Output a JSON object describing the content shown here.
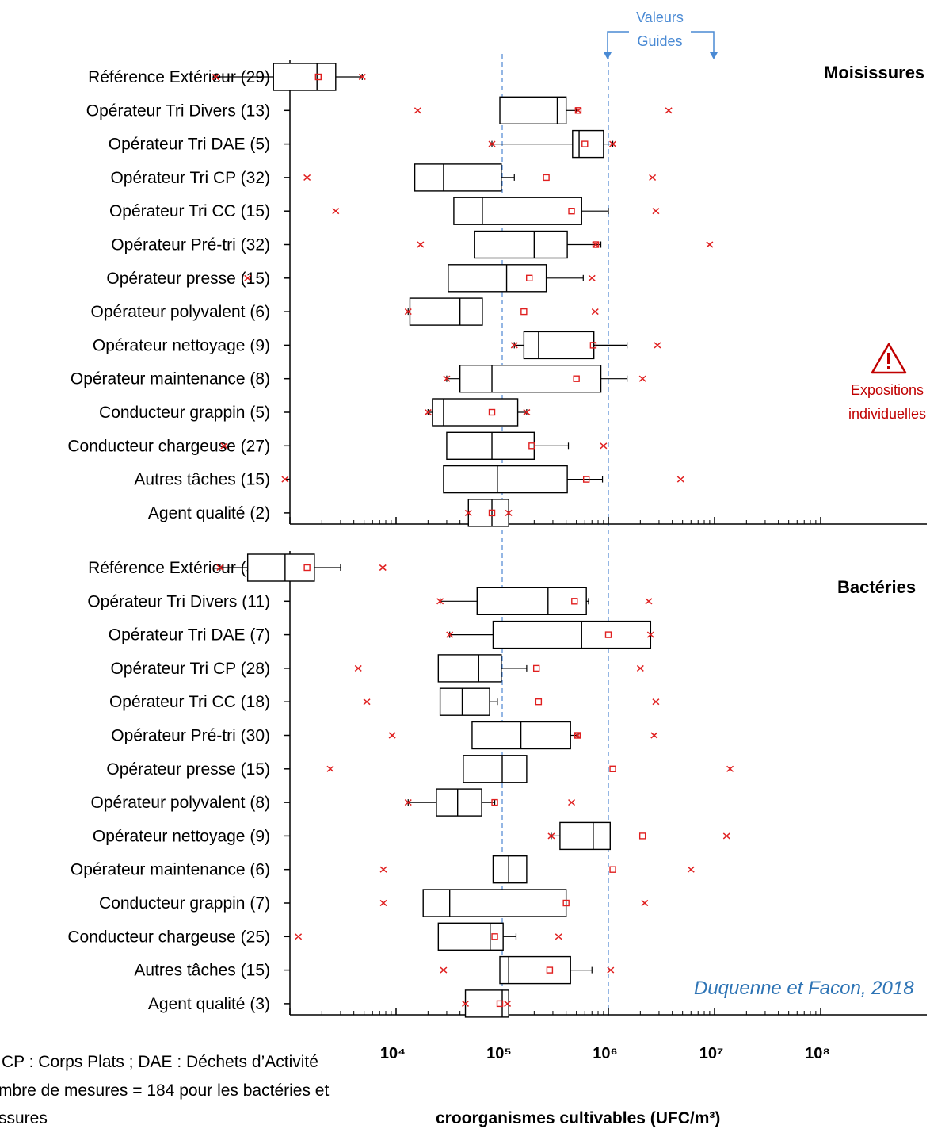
{
  "chart_data": {
    "type": "box",
    "xlabel": "croorganismes cultivables (UFC/m³)",
    "x_scale": "log10",
    "xlim": [
      1000,
      100000000
    ],
    "x_ticks": [
      {
        "value": 10000,
        "label": "10⁴"
      },
      {
        "value": 100000,
        "label": "10⁵"
      },
      {
        "value": 1000000,
        "label": "10⁶"
      },
      {
        "value": 10000000,
        "label": "10⁷"
      },
      {
        "value": 100000000,
        "label": "10⁸"
      }
    ],
    "reference_lines": [
      100000,
      1000000
    ],
    "reference_label": [
      "Valeurs",
      "Guides"
    ],
    "annotation": [
      "Expositions",
      "individuelles"
    ],
    "source": "Duquenne et Facon, 2018",
    "notes": [
      "CP : Corps Plats ; DAE : Déchets d’Activité",
      "mbre de mesures = 184 pour les bactéries et",
      "ssures"
    ],
    "panels": [
      {
        "title": "Moisissures",
        "series": [
          {
            "name": "Référence Extérieur (29)",
            "wlo": 200,
            "q1": 700,
            "med": 1800,
            "q3": 2700,
            "whi": 4800,
            "mean": 1850,
            "outliers": [
              200,
              4800
            ]
          },
          {
            "name": "Opérateur Tri Divers (13)",
            "wlo": 100000,
            "q1": 95000,
            "med": 330000,
            "q3": 400000,
            "whi": 500000,
            "mean": 520000,
            "outliers": [
              16000,
              520000,
              3700000
            ]
          },
          {
            "name": "Opérateur Tri DAE (5)",
            "wlo": 80000,
            "q1": 460000,
            "med": 530000,
            "q3": 900000,
            "whi": 1100000,
            "mean": 600000,
            "outliers": [
              80000,
              1100000
            ]
          },
          {
            "name": "Opérateur Tri CP (32)",
            "wlo": 95000,
            "q1": 15000,
            "med": 28000,
            "q3": 98000,
            "whi": 130000,
            "mean": 260000,
            "outliers": [
              1450,
              2600000
            ]
          },
          {
            "name": "Opérateur Tri CC (15)",
            "wlo": 100000,
            "q1": 35000,
            "med": 65000,
            "q3": 560000,
            "whi": 1000000,
            "mean": 450000,
            "outliers": [
              2700,
              2800000
            ]
          },
          {
            "name": "Opérateur Pré-tri (32)",
            "wlo": 100000,
            "q1": 55000,
            "med": 200000,
            "q3": 410000,
            "whi": 850000,
            "mean": 760000,
            "outliers": [
              17000,
              760000,
              9000000
            ]
          },
          {
            "name": "Opérateur presse (15)",
            "wlo": 100000,
            "q1": 31000,
            "med": 110000,
            "q3": 260000,
            "whi": 580000,
            "mean": 180000,
            "outliers": [
              400,
              700000
            ]
          },
          {
            "name": "Opérateur polyvalent (6)",
            "wlo": 13000,
            "q1": 13500,
            "med": 40000,
            "q3": 65000,
            "whi": 65000,
            "mean": 160000,
            "outliers": [
              13000,
              750000
            ]
          },
          {
            "name": "Opérateur nettoyage (9)",
            "wlo": 130000,
            "q1": 160000,
            "med": 220000,
            "q3": 730000,
            "whi": 1500000,
            "mean": 720000,
            "outliers": [
              130000,
              2900000
            ]
          },
          {
            "name": "Opérateur maintenance (8)",
            "wlo": 30000,
            "q1": 40000,
            "med": 80000,
            "q3": 850000,
            "whi": 1500000,
            "mean": 500000,
            "outliers": [
              30000,
              2100000
            ]
          },
          {
            "name": "Conducteur grappin (5)",
            "wlo": 20000,
            "q1": 22000,
            "med": 28000,
            "q3": 140000,
            "whi": 170000,
            "mean": 80000,
            "outliers": [
              20000,
              170000
            ]
          },
          {
            "name": "Conducteur chargeuse (27)",
            "wlo": 100000,
            "q1": 30000,
            "med": 80000,
            "q3": 200000,
            "whi": 420000,
            "mean": 190000,
            "outliers": [
              240,
              900000
            ]
          },
          {
            "name": "Autres tâches (15)",
            "wlo": 100000,
            "q1": 28000,
            "med": 90000,
            "q3": 410000,
            "whi": 880000,
            "mean": 620000,
            "outliers": [
              900,
              4800000
            ]
          },
          {
            "name": "Agent qualité (2)",
            "wlo": 48000,
            "q1": 48000,
            "med": 80000,
            "q3": 115000,
            "whi": 115000,
            "mean": 80000,
            "outliers": [
              48000,
              115000
            ]
          }
        ]
      },
      {
        "title": "Bactéries",
        "series": [
          {
            "name": "Référence Extérieur (36)",
            "wlo": 220,
            "q1": 400,
            "med": 900,
            "q3": 1700,
            "whi": 3000,
            "mean": 1450,
            "outliers": [
              220,
              7500
            ]
          },
          {
            "name": "Opérateur Tri Divers (11)",
            "wlo": 26000,
            "q1": 58000,
            "med": 270000,
            "q3": 620000,
            "whi": 650000,
            "mean": 480000,
            "outliers": [
              26000,
              2400000
            ]
          },
          {
            "name": "Opérateur Tri DAE (7)",
            "wlo": 32000,
            "q1": 82000,
            "med": 560000,
            "q3": 2500000,
            "whi": 2500000,
            "mean": 1000000,
            "outliers": [
              32000,
              2500000
            ]
          },
          {
            "name": "Opérateur Tri CP (28)",
            "wlo": 100000,
            "q1": 25000,
            "med": 60000,
            "q3": 98000,
            "whi": 170000,
            "mean": 210000,
            "outliers": [
              4400,
              2000000
            ]
          },
          {
            "name": "Opérateur Tri CC (18)",
            "wlo": 100000,
            "q1": 26000,
            "med": 42000,
            "q3": 76000,
            "whi": 90000,
            "mean": 220000,
            "outliers": [
              5300,
              2800000
            ]
          },
          {
            "name": "Opérateur Pré-tri (30)",
            "wlo": 100000,
            "q1": 52000,
            "med": 150000,
            "q3": 440000,
            "whi": 520000,
            "mean": 510000,
            "outliers": [
              9200,
              510000,
              2700000
            ]
          },
          {
            "name": "Opérateur presse (15)",
            "wlo": 100000,
            "q1": 43000,
            "med": 100000,
            "q3": 170000,
            "whi": 170000,
            "mean": 1100000,
            "outliers": [
              2400,
              14000000
            ]
          },
          {
            "name": "Opérateur polyvalent (8)",
            "wlo": 13000,
            "q1": 24000,
            "med": 38000,
            "q3": 64000,
            "whi": 85000,
            "mean": 85000,
            "outliers": [
              13000,
              450000
            ]
          },
          {
            "name": "Opérateur nettoyage (9)",
            "wlo": 290000,
            "q1": 350000,
            "med": 720000,
            "q3": 1040000,
            "whi": 1040000,
            "mean": 2100000,
            "outliers": [
              290000,
              13000000
            ]
          },
          {
            "name": "Opérateur maintenance (6)",
            "wlo": 82000,
            "q1": 82000,
            "med": 115000,
            "q3": 170000,
            "whi": 170000,
            "mean": 1100000,
            "outliers": [
              7600,
              6000000
            ]
          },
          {
            "name": "Conducteur grappin (7)",
            "wlo": 100000,
            "q1": 18000,
            "med": 32000,
            "q3": 400000,
            "whi": 400000,
            "mean": 400000,
            "outliers": [
              7600,
              2200000
            ]
          },
          {
            "name": "Conducteur chargeuse (25)",
            "wlo": 100000,
            "q1": 25000,
            "med": 77000,
            "q3": 102000,
            "whi": 135000,
            "mean": 85000,
            "outliers": [
              1200,
              340000
            ]
          },
          {
            "name": "Autres tâches (15)",
            "wlo": 100000,
            "q1": 95000,
            "med": 115000,
            "q3": 440000,
            "whi": 700000,
            "mean": 280000,
            "outliers": [
              28000,
              1050000
            ]
          },
          {
            "name": "Agent qualité (3)",
            "wlo": 45000,
            "q1": 45000,
            "med": 100000,
            "q3": 115000,
            "whi": 115000,
            "mean": 95000,
            "outliers": [
              45000,
              112000
            ]
          }
        ]
      }
    ]
  }
}
